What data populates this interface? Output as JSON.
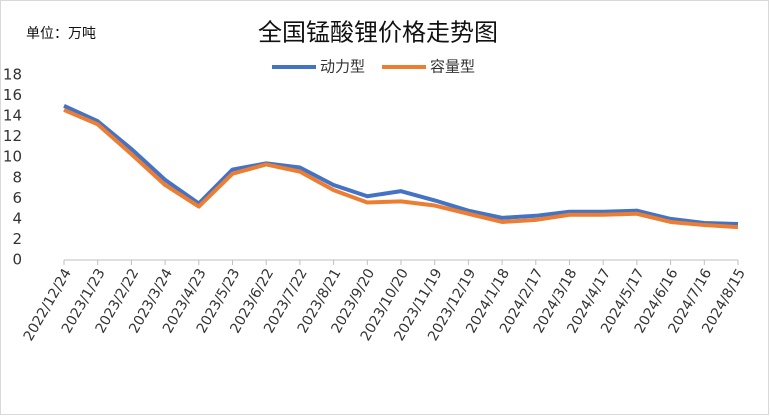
{
  "chart_data": {
    "type": "line",
    "title": "全国锰酸锂价格走势图",
    "unit_label": "单位：万吨",
    "categories": [
      "2022/12/24",
      "2023/1/23",
      "2023/2/22",
      "2023/3/24",
      "2023/4/23",
      "2023/5/23",
      "2023/6/22",
      "2023/7/22",
      "2023/8/21",
      "2023/9/20",
      "2023/10/20",
      "2023/11/19",
      "2023/12/19",
      "2024/1/18",
      "2024/2/17",
      "2024/3/18",
      "2024/4/17",
      "2024/5/17",
      "2024/6/16",
      "2024/7/16",
      "2024/8/15"
    ],
    "series": [
      {
        "name": "动力型",
        "color": "#4472c4",
        "values": [
          15,
          13.5,
          10.8,
          7.8,
          5.5,
          8.8,
          9.4,
          9.0,
          7.3,
          6.2,
          6.7,
          5.8,
          4.8,
          4.1,
          4.3,
          4.7,
          4.7,
          4.8,
          4.0,
          3.6,
          3.5
        ]
      },
      {
        "name": "容量型",
        "color": "#ed7d31",
        "values": [
          14.6,
          13.2,
          10.3,
          7.3,
          5.2,
          8.4,
          9.3,
          8.6,
          6.8,
          5.6,
          5.7,
          5.3,
          4.5,
          3.7,
          3.9,
          4.4,
          4.4,
          4.5,
          3.7,
          3.4,
          3.2
        ]
      }
    ],
    "ylim": [
      0,
      18
    ],
    "yticks": [
      0,
      2,
      4,
      6,
      8,
      10,
      12,
      14,
      16,
      18
    ],
    "grid": false,
    "legend": "top"
  }
}
